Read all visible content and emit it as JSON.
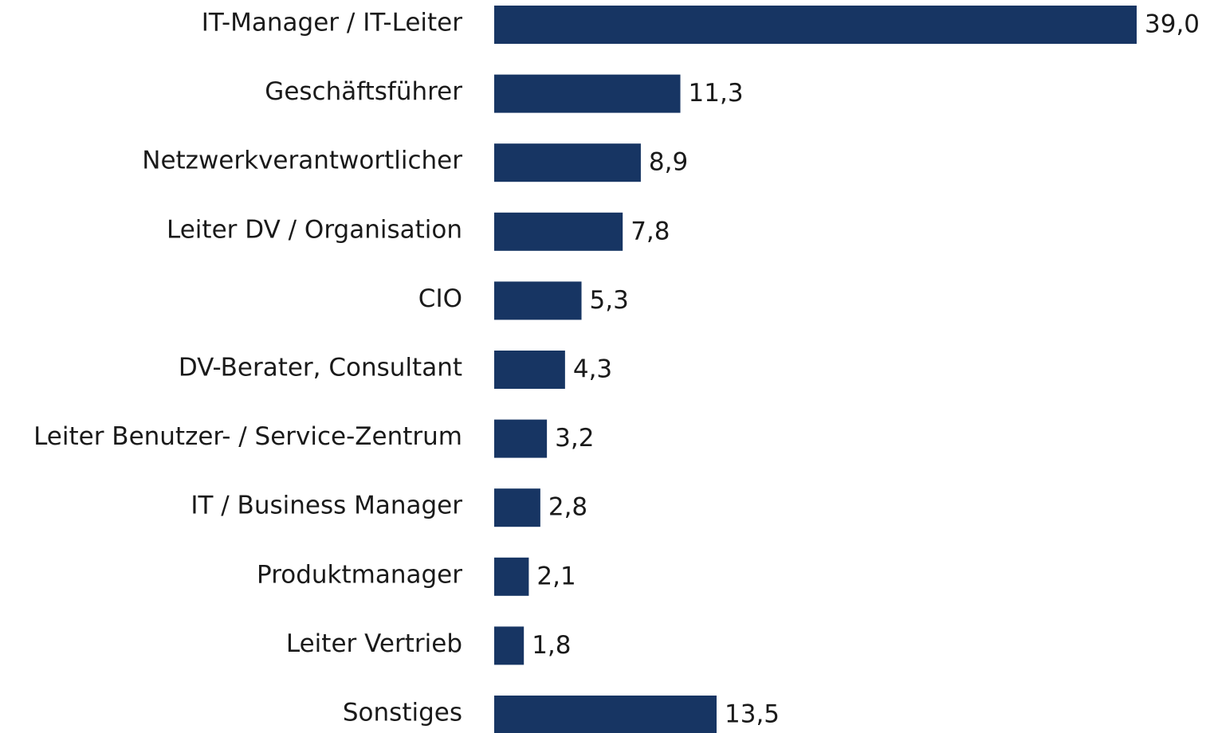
{
  "chart_data": {
    "type": "barh",
    "categories": [
      "IT-Manager / IT-Leiter",
      "Geschäftsführer",
      "Netzwerkverantwortlicher",
      "Leiter DV / Organisation",
      "CIO",
      "DV-Berater, Consultant",
      "Leiter Benutzer- / Service-Zentrum",
      "IT / Business Manager",
      "Produktmanager",
      "Leiter Vertrieb",
      "Sonstiges"
    ],
    "values": [
      39.0,
      11.3,
      8.9,
      7.8,
      5.3,
      4.3,
      3.2,
      2.8,
      2.1,
      1.8,
      13.5
    ],
    "value_labels": [
      "39,0",
      "11,3",
      "8,9",
      "7,8",
      "5,3",
      "4,3",
      "3,2",
      "2,8",
      "2,1",
      "1,8",
      "13,5"
    ],
    "color": "#173563"
  }
}
